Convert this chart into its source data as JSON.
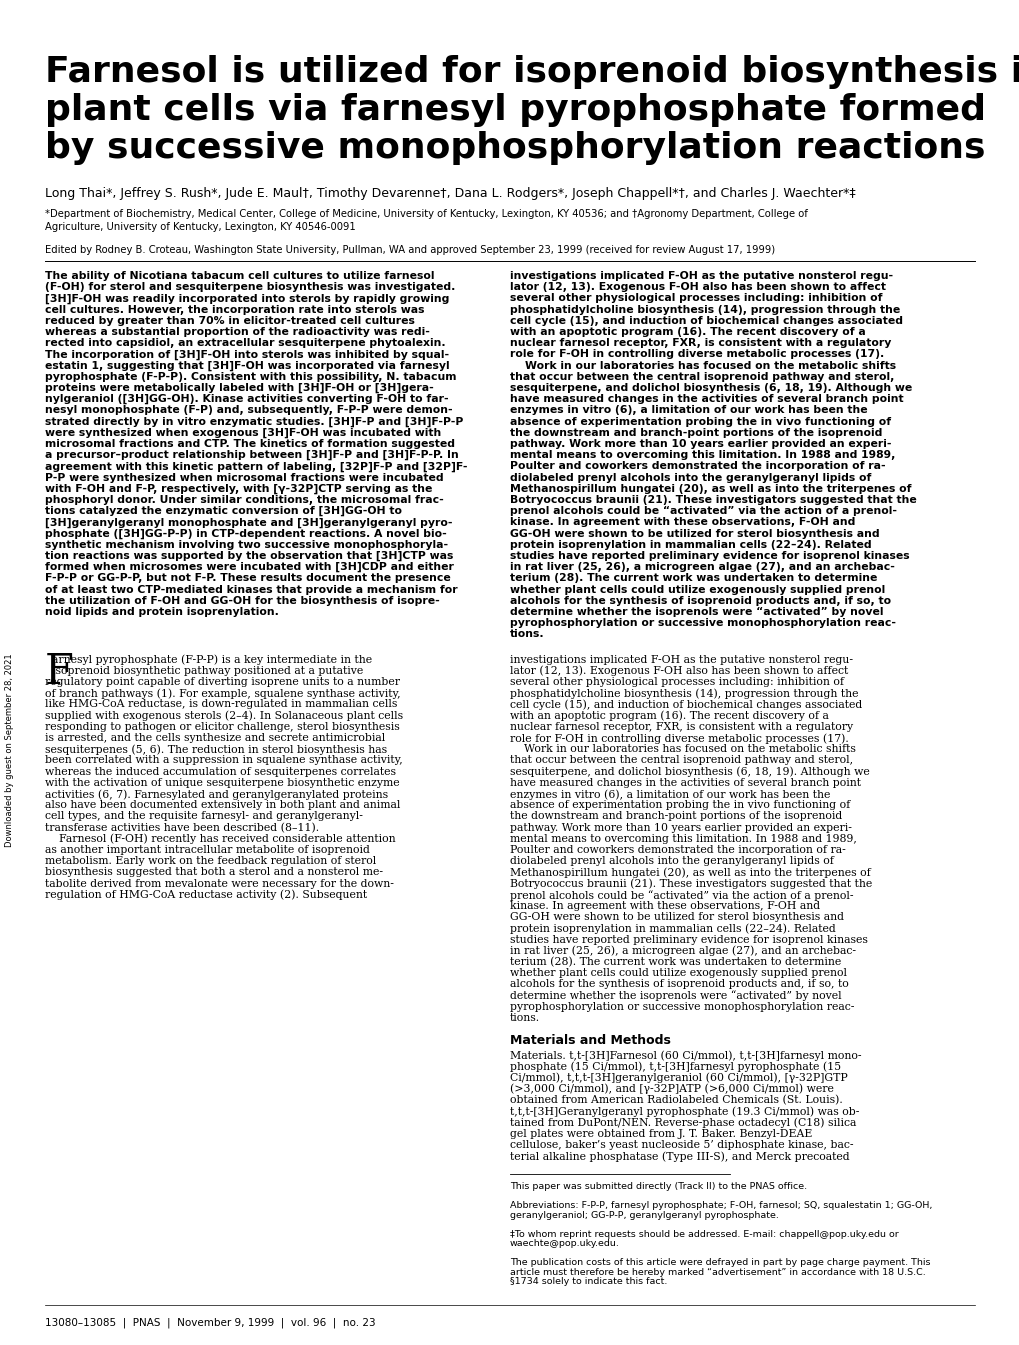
{
  "title_line1": "Farnesol is utilized for isoprenoid biosynthesis in",
  "title_line2": "plant cells via farnesyl pyrophosphate formed",
  "title_line3": "by successive monophosphorylation reactions",
  "authors": "Long Thai*, Jeffrey S. Rush*, Jude E. Maul†, Timothy Devarenne†, Dana L. Rodgers*, Joseph Chappell*†, and Charles J. Waechter*‡",
  "affiliation1": "*Department of Biochemistry, Medical Center, College of Medicine, University of Kentucky, Lexington, KY 40536; and †Agronomy Department, College of",
  "affiliation2": "Agriculture, University of Kentucky, Lexington, KY 40546-0091",
  "edited_by": "Edited by Rodney B. Croteau, Washington State University, Pullman, WA and approved September 23, 1999 (received for review August 17, 1999)",
  "background_color": "#ffffff",
  "text_color": "#000000",
  "footer": "13080–13085  |  PNAS  |  November 9, 1999  |  vol. 96  |  no. 23",
  "sidebar_text": "Downloaded by guest on September 28, 2021"
}
